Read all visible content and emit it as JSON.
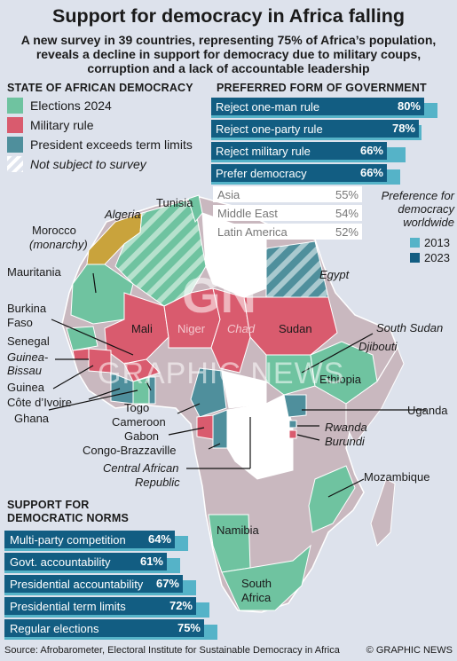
{
  "title": "Support for democracy in Africa falling",
  "subtitle": "A new survey in 39 countries, representing 75% of Africa’s population, reveals a decline in support for democracy due to military coups, corruption and a lack of accountable leadership",
  "legend": {
    "heading": "State of African Democracy",
    "items": [
      {
        "label": "Elections 2024",
        "color": "#6fc3a0",
        "italic": false
      },
      {
        "label": "Military rule",
        "color": "#d95b6e",
        "italic": false
      },
      {
        "label": "President exceeds term limits",
        "color": "#4f8f9c",
        "italic": false
      },
      {
        "label": "Not subject to survey",
        "color": "hatched",
        "italic": true
      }
    ]
  },
  "preferred": {
    "heading": "Preferred Form of Government",
    "items": [
      {
        "label": "Reject one-man rule",
        "v2023": "80%",
        "v2013": 85,
        "v2023num": 80
      },
      {
        "label": "Reject one-party rule",
        "v2023": "78%",
        "v2013": 79,
        "v2023num": 78
      },
      {
        "label": "Reject military rule",
        "v2023": "66%",
        "v2013": 73,
        "v2023num": 66
      },
      {
        "label": "Prefer democracy",
        "v2023": "66%",
        "v2013": 71,
        "v2023num": 66
      }
    ],
    "world": [
      {
        "label": "Asia",
        "value": "55%"
      },
      {
        "label": "Middle East",
        "value": "54%"
      },
      {
        "label": "Latin America",
        "value": "52%"
      }
    ],
    "world_note": "Preference for democracy worldwide",
    "years": [
      {
        "label": "2013",
        "color": "#55b3c8"
      },
      {
        "label": "2023",
        "color": "#125d82"
      }
    ]
  },
  "map_labels": {
    "tunisia": "Tunisia",
    "algeria": "Algeria",
    "morocco": "Morocco",
    "monarchy": "(monarchy)",
    "mauritania": "Mauritania",
    "egypt": "Egypt",
    "burkina": "Burkina",
    "faso": "Faso",
    "mali": "Mali",
    "niger": "Niger",
    "chad": "Chad",
    "sudan": "Sudan",
    "senegal": "Senegal",
    "guinea_bissau_1": "Guinea-",
    "guinea_bissau_2": "Bissau",
    "guinea": "Guinea",
    "cote": "Côte d’Ivoire",
    "ghana": "Ghana",
    "togo": "Togo",
    "cameroon": "Cameroon",
    "gabon": "Gabon",
    "congo_b": "Congo-Brazzaville",
    "car_1": "Central African",
    "car_2": "Republic",
    "south_sudan": "South Sudan",
    "djibouti": "Djibouti",
    "ethiopia": "Ethiopia",
    "uganda": "Uganda",
    "rwanda": "Rwanda",
    "burundi": "Burundi",
    "mozambique": "Mozambique",
    "namibia": "Namibia",
    "south_africa_1": "South",
    "south_africa_2": "Africa",
    "watermark_1": "GN",
    "watermark_2": "GRAPHIC NEWS"
  },
  "norms": {
    "heading_1": "Support for",
    "heading_2": "Democratic Norms",
    "items": [
      {
        "label": "Multi-party competition",
        "value": "64%",
        "num": 64
      },
      {
        "label": "Govt. accountability",
        "value": "61%",
        "num": 61
      },
      {
        "label": "Presidential accountability",
        "value": "67%",
        "num": 67
      },
      {
        "label": "Presidential term limits",
        "value": "72%",
        "num": 72
      },
      {
        "label": "Regular elections",
        "value": "75%",
        "num": 75
      }
    ]
  },
  "source": "Source: Afrobarometer, Electoral Institute for Sustainable Democracy in Africa",
  "credit": "© GRAPHIC NEWS"
}
